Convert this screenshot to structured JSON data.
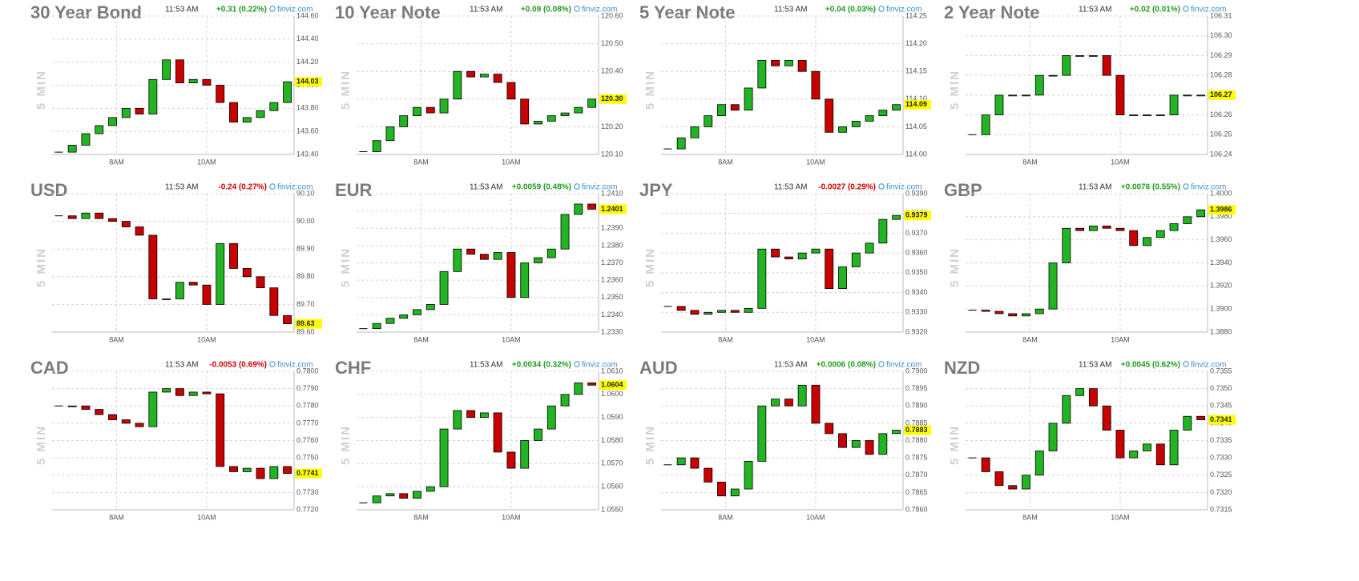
{
  "chart_data": [
    {
      "type": "candlestick",
      "title": "30 Year Bond",
      "ylabel": "5 MIN",
      "time": "11:53 AM",
      "change": "+0.31 (0.22%)",
      "change_color": "#1f9a1f",
      "source": "finviz.com",
      "up_color": "#22b422",
      "down_color": "#c80000",
      "last": 144.03,
      "ylim": [
        143.4,
        144.6
      ],
      "yticks": [
        {
          "value": 144.6,
          "label": "144.60"
        },
        {
          "value": 144.4,
          "label": "144.40"
        },
        {
          "value": 144.2,
          "label": "144.20"
        },
        {
          "value": 144,
          "label": "144.00"
        },
        {
          "value": 143.8,
          "label": "143.80"
        },
        {
          "value": 143.6,
          "label": "143.60"
        },
        {
          "value": 143.4,
          "label": "143.40"
        }
      ],
      "xlim": [
        0,
        18
      ],
      "xticks": [
        {
          "value": 4.8,
          "label": "8AM"
        },
        {
          "value": 11.5,
          "label": "10AM"
        }
      ],
      "close": [
        143.42,
        143.48,
        143.58,
        143.65,
        143.72,
        143.8,
        143.75,
        144.05,
        144.22,
        144.02,
        144.05,
        144,
        143.85,
        143.68,
        143.72,
        143.78,
        143.85,
        144.03
      ]
    },
    {
      "type": "candlestick",
      "title": "10 Year Note",
      "ylabel": "5 MIN",
      "time": "11:53 AM",
      "change": "+0.09 (0.08%)",
      "change_color": "#1f9a1f",
      "source": "finviz.com",
      "up_color": "#22b422",
      "down_color": "#c80000",
      "last": {
        "value": 120.3,
        "label": "120.30"
      },
      "ylim": [
        120.1,
        120.6
      ],
      "yticks": [
        {
          "value": 120.6,
          "label": "120.60"
        },
        {
          "value": 120.5,
          "label": "120.50"
        },
        {
          "value": 120.4,
          "label": "120.40"
        },
        {
          "value": 120.3,
          "label": "120.30"
        },
        {
          "value": 120.2,
          "label": "120.20"
        },
        {
          "value": 120.1,
          "label": "120.10"
        }
      ],
      "xlim": [
        0,
        18
      ],
      "xticks": [
        {
          "value": 4.8,
          "label": "8AM"
        },
        {
          "value": 11.5,
          "label": "10AM"
        }
      ],
      "close": [
        120.11,
        120.15,
        120.2,
        120.24,
        120.27,
        120.25,
        120.3,
        120.4,
        120.38,
        120.39,
        120.36,
        120.3,
        120.21,
        120.22,
        120.24,
        120.25,
        120.27,
        120.3
      ]
    },
    {
      "type": "candlestick",
      "title": "5 Year Note",
      "ylabel": "5 MIN",
      "time": "11:53 AM",
      "change": "+0.04 (0.03%)",
      "change_color": "#1f9a1f",
      "source": "finviz.com",
      "up_color": "#22b422",
      "down_color": "#c80000",
      "last": 114.09,
      "ylim": [
        114,
        114.25
      ],
      "yticks": [
        114.25,
        {
          "value": 114.2,
          "label": "114.20"
        },
        114.15,
        {
          "value": 114.1,
          "label": "114.10"
        },
        114.05,
        {
          "value": 114,
          "label": "114.00"
        }
      ],
      "xlim": [
        0,
        18
      ],
      "xticks": [
        {
          "value": 4.8,
          "label": "8AM"
        },
        {
          "value": 11.5,
          "label": "10AM"
        }
      ],
      "close": [
        114.01,
        114.03,
        114.05,
        114.07,
        114.09,
        114.08,
        114.12,
        114.17,
        114.16,
        114.17,
        114.15,
        114.1,
        114.04,
        114.05,
        114.06,
        114.07,
        114.08,
        114.09
      ]
    },
    {
      "type": "candlestick",
      "title": "2 Year Note",
      "ylabel": "5 MIN",
      "time": "11:53 AM",
      "change": "+0.02 (0.01%)",
      "change_color": "#1f9a1f",
      "source": "finviz.com",
      "up_color": "#22b422",
      "down_color": "#c80000",
      "last": 106.27,
      "ylim": [
        106.24,
        106.31
      ],
      "yticks": [
        106.31,
        {
          "value": 106.3,
          "label": "106.30"
        },
        106.29,
        106.28,
        106.27,
        106.26,
        106.25,
        106.24
      ],
      "xlim": [
        0,
        18
      ],
      "xticks": [
        {
          "value": 4.8,
          "label": "8AM"
        },
        {
          "value": 11.5,
          "label": "10AM"
        }
      ],
      "close": [
        106.25,
        106.26,
        106.27,
        106.27,
        106.27,
        106.28,
        106.28,
        106.29,
        106.29,
        106.29,
        106.28,
        106.26,
        106.26,
        106.26,
        106.26,
        106.27,
        106.27,
        106.27
      ]
    },
    {
      "type": "candlestick",
      "title": "USD",
      "ylabel": "5 MIN",
      "time": "11:53 AM",
      "change": "-0.24 (0.27%)",
      "change_color": "#d00000",
      "source": "finviz.com",
      "up_color": "#22b422",
      "down_color": "#c80000",
      "last": 89.63,
      "ylim": [
        89.6,
        90.1
      ],
      "yticks": [
        {
          "value": 90.1,
          "label": "90.10"
        },
        {
          "value": 90,
          "label": "90.00"
        },
        {
          "value": 89.9,
          "label": "89.90"
        },
        {
          "value": 89.8,
          "label": "89.80"
        },
        {
          "value": 89.7,
          "label": "89.70"
        },
        {
          "value": 89.6,
          "label": "89.60"
        }
      ],
      "xlim": [
        0,
        18
      ],
      "xticks": [
        {
          "value": 4.8,
          "label": "8AM"
        },
        {
          "value": 11.5,
          "label": "10AM"
        }
      ],
      "close": [
        90.02,
        90.01,
        90.03,
        90.01,
        90,
        89.98,
        89.95,
        89.72,
        89.72,
        89.78,
        89.77,
        89.7,
        89.92,
        89.83,
        89.8,
        89.76,
        89.66,
        89.63
      ]
    },
    {
      "type": "candlestick",
      "title": "EUR",
      "ylabel": "5 MIN",
      "time": "11:53 AM",
      "change": "+0.0059 (0.48%)",
      "change_color": "#1f9a1f",
      "source": "finviz.com",
      "up_color": "#22b422",
      "down_color": "#c80000",
      "last": 1.2401,
      "ylim": [
        1.233,
        1.241
      ],
      "yticks": [
        {
          "value": 1.241,
          "label": "1.2410"
        },
        {
          "value": 1.24,
          "label": "1.2400"
        },
        {
          "value": 1.239,
          "label": "1.2390"
        },
        {
          "value": 1.238,
          "label": "1.2380"
        },
        {
          "value": 1.237,
          "label": "1.2370"
        },
        {
          "value": 1.236,
          "label": "1.2360"
        },
        {
          "value": 1.235,
          "label": "1.2350"
        },
        {
          "value": 1.234,
          "label": "1.2340"
        },
        {
          "value": 1.233,
          "label": "1.2330"
        }
      ],
      "xlim": [
        0,
        18
      ],
      "xticks": [
        {
          "value": 4.8,
          "label": "8AM"
        },
        {
          "value": 11.5,
          "label": "10AM"
        }
      ],
      "close": [
        1.2332,
        1.2335,
        1.2338,
        1.234,
        1.2343,
        1.2346,
        1.2365,
        1.2378,
        1.2375,
        1.2372,
        1.2376,
        1.235,
        1.237,
        1.2373,
        1.2378,
        1.2398,
        1.2404,
        1.2401
      ]
    },
    {
      "type": "candlestick",
      "title": "JPY",
      "ylabel": "5 MIN",
      "time": "11:53 AM",
      "change": "-0.0027 (0.29%)",
      "change_color": "#d00000",
      "source": "finviz.com",
      "up_color": "#22b422",
      "down_color": "#c80000",
      "last": 0.9379,
      "ylim": [
        0.932,
        0.939
      ],
      "yticks": [
        {
          "value": 0.939,
          "label": "0.9390"
        },
        {
          "value": 0.938,
          "label": "0.9380"
        },
        {
          "value": 0.937,
          "label": "0.9370"
        },
        {
          "value": 0.936,
          "label": "0.9360"
        },
        {
          "value": 0.935,
          "label": "0.9350"
        },
        {
          "value": 0.934,
          "label": "0.9340"
        },
        {
          "value": 0.933,
          "label": "0.9330"
        },
        {
          "value": 0.932,
          "label": "0.9320"
        }
      ],
      "xlim": [
        0,
        18
      ],
      "xticks": [
        {
          "value": 4.8,
          "label": "8AM"
        },
        {
          "value": 11.5,
          "label": "10AM"
        }
      ],
      "close": [
        0.9333,
        0.9331,
        0.9329,
        0.933,
        0.9331,
        0.933,
        0.9332,
        0.9362,
        0.9358,
        0.9357,
        0.936,
        0.9362,
        0.9342,
        0.9353,
        0.936,
        0.9365,
        0.9377,
        0.9379
      ]
    },
    {
      "type": "candlestick",
      "title": "GBP",
      "ylabel": "5 MIN",
      "time": "11:53 AM",
      "change": "+0.0076 (0.55%)",
      "change_color": "#1f9a1f",
      "source": "finviz.com",
      "up_color": "#22b422",
      "down_color": "#c80000",
      "last": 1.3986,
      "ylim": [
        1.388,
        1.4
      ],
      "yticks": [
        {
          "value": 1.4,
          "label": "1.4000"
        },
        {
          "value": 1.398,
          "label": "1.3980"
        },
        {
          "value": 1.396,
          "label": "1.3960"
        },
        {
          "value": 1.394,
          "label": "1.3940"
        },
        {
          "value": 1.392,
          "label": "1.3920"
        },
        {
          "value": 1.39,
          "label": "1.3900"
        },
        {
          "value": 1.388,
          "label": "1.3880"
        }
      ],
      "xlim": [
        0,
        18
      ],
      "xticks": [
        {
          "value": 4.8,
          "label": "8AM"
        },
        {
          "value": 11.5,
          "label": "10AM"
        }
      ],
      "close": [
        1.3899,
        1.3898,
        1.3896,
        1.3894,
        1.3896,
        1.39,
        1.394,
        1.397,
        1.3968,
        1.3972,
        1.397,
        1.3968,
        1.3955,
        1.3962,
        1.3968,
        1.3974,
        1.398,
        1.3986
      ]
    },
    {
      "type": "candlestick",
      "title": "CAD",
      "ylabel": "5 MIN",
      "time": "11:53 AM",
      "change": "-0.0053 (0.69%)",
      "change_color": "#d00000",
      "source": "finviz.com",
      "up_color": "#22b422",
      "down_color": "#c80000",
      "last": 0.7741,
      "ylim": [
        0.772,
        0.78
      ],
      "yticks": [
        {
          "value": 0.78,
          "label": "0.7800"
        },
        {
          "value": 0.779,
          "label": "0.7790"
        },
        {
          "value": 0.778,
          "label": "0.7780"
        },
        {
          "value": 0.777,
          "label": "0.7770"
        },
        {
          "value": 0.776,
          "label": "0.7760"
        },
        {
          "value": 0.775,
          "label": "0.7750"
        },
        {
          "value": 0.774,
          "label": "0.7740"
        },
        {
          "value": 0.773,
          "label": "0.7730"
        },
        {
          "value": 0.772,
          "label": "0.7720"
        }
      ],
      "xlim": [
        0,
        18
      ],
      "xticks": [
        {
          "value": 4.8,
          "label": "8AM"
        },
        {
          "value": 11.5,
          "label": "10AM"
        }
      ],
      "close": [
        0.778,
        0.778,
        0.7778,
        0.7775,
        0.7772,
        0.777,
        0.7768,
        0.7788,
        0.779,
        0.7786,
        0.7788,
        0.7787,
        0.7745,
        0.7742,
        0.7744,
        0.7738,
        0.7745,
        0.7741
      ]
    },
    {
      "type": "candlestick",
      "title": "CHF",
      "ylabel": "5 MIN",
      "time": "11:53 AM",
      "change": "+0.0034 (0.32%)",
      "change_color": "#1f9a1f",
      "source": "finviz.com",
      "up_color": "#22b422",
      "down_color": "#c80000",
      "last": 1.0604,
      "ylim": [
        1.055,
        1.061
      ],
      "yticks": [
        {
          "value": 1.061,
          "label": "1.0610"
        },
        {
          "value": 1.06,
          "label": "1.0600"
        },
        {
          "value": 1.059,
          "label": "1.0590"
        },
        {
          "value": 1.058,
          "label": "1.0580"
        },
        {
          "value": 1.057,
          "label": "1.0570"
        },
        {
          "value": 1.056,
          "label": "1.0560"
        },
        {
          "value": 1.055,
          "label": "1.0550"
        }
      ],
      "xlim": [
        0,
        18
      ],
      "xticks": [
        {
          "value": 4.8,
          "label": "8AM"
        },
        {
          "value": 11.5,
          "label": "10AM"
        }
      ],
      "close": [
        1.0553,
        1.0556,
        1.0557,
        1.0555,
        1.0558,
        1.056,
        1.0585,
        1.0593,
        1.059,
        1.0592,
        1.0575,
        1.0568,
        1.058,
        1.0585,
        1.0595,
        1.06,
        1.0605,
        1.0604
      ]
    },
    {
      "type": "candlestick",
      "title": "AUD",
      "ylabel": "5 MIN",
      "time": "11:53 AM",
      "change": "+0.0006 (0.08%)",
      "change_color": "#1f9a1f",
      "source": "finviz.com",
      "up_color": "#22b422",
      "down_color": "#c80000",
      "last": 0.7883,
      "ylim": [
        0.786,
        0.79
      ],
      "yticks": [
        {
          "value": 0.79,
          "label": "0.7900"
        },
        0.7895,
        {
          "value": 0.789,
          "label": "0.7890"
        },
        0.7885,
        {
          "value": 0.788,
          "label": "0.7880"
        },
        0.7875,
        {
          "value": 0.787,
          "label": "0.7870"
        },
        0.7865,
        {
          "value": 0.786,
          "label": "0.7860"
        }
      ],
      "xlim": [
        0,
        18
      ],
      "xticks": [
        {
          "value": 4.8,
          "label": "8AM"
        },
        {
          "value": 11.5,
          "label": "10AM"
        }
      ],
      "close": [
        0.7873,
        0.7875,
        0.7872,
        0.7868,
        0.7864,
        0.7866,
        0.7874,
        0.789,
        0.7892,
        0.789,
        0.7896,
        0.7885,
        0.7882,
        0.7878,
        0.788,
        0.7876,
        0.7882,
        0.7883
      ]
    },
    {
      "type": "candlestick",
      "title": "NZD",
      "ylabel": "5 MIN",
      "time": "11:53 AM",
      "change": "+0.0045 (0.62%)",
      "change_color": "#1f9a1f",
      "source": "finviz.com",
      "up_color": "#22b422",
      "down_color": "#c80000",
      "last": 0.7341,
      "ylim": [
        0.7315,
        0.7355
      ],
      "yticks": [
        0.7355,
        {
          "value": 0.735,
          "label": "0.7350"
        },
        0.7345,
        {
          "value": 0.734,
          "label": "0.7340"
        },
        0.7335,
        {
          "value": 0.733,
          "label": "0.7330"
        },
        0.7325,
        {
          "value": 0.732,
          "label": "0.7320"
        },
        0.7315
      ],
      "xlim": [
        0,
        18
      ],
      "xticks": [
        {
          "value": 4.8,
          "label": "8AM"
        },
        {
          "value": 11.5,
          "label": "10AM"
        }
      ],
      "close": [
        0.733,
        0.7326,
        0.7322,
        0.7321,
        0.7325,
        0.7332,
        0.734,
        0.7348,
        0.735,
        0.7345,
        0.7338,
        0.733,
        0.7332,
        0.7334,
        0.7328,
        0.7338,
        0.7342,
        0.7341
      ]
    }
  ]
}
